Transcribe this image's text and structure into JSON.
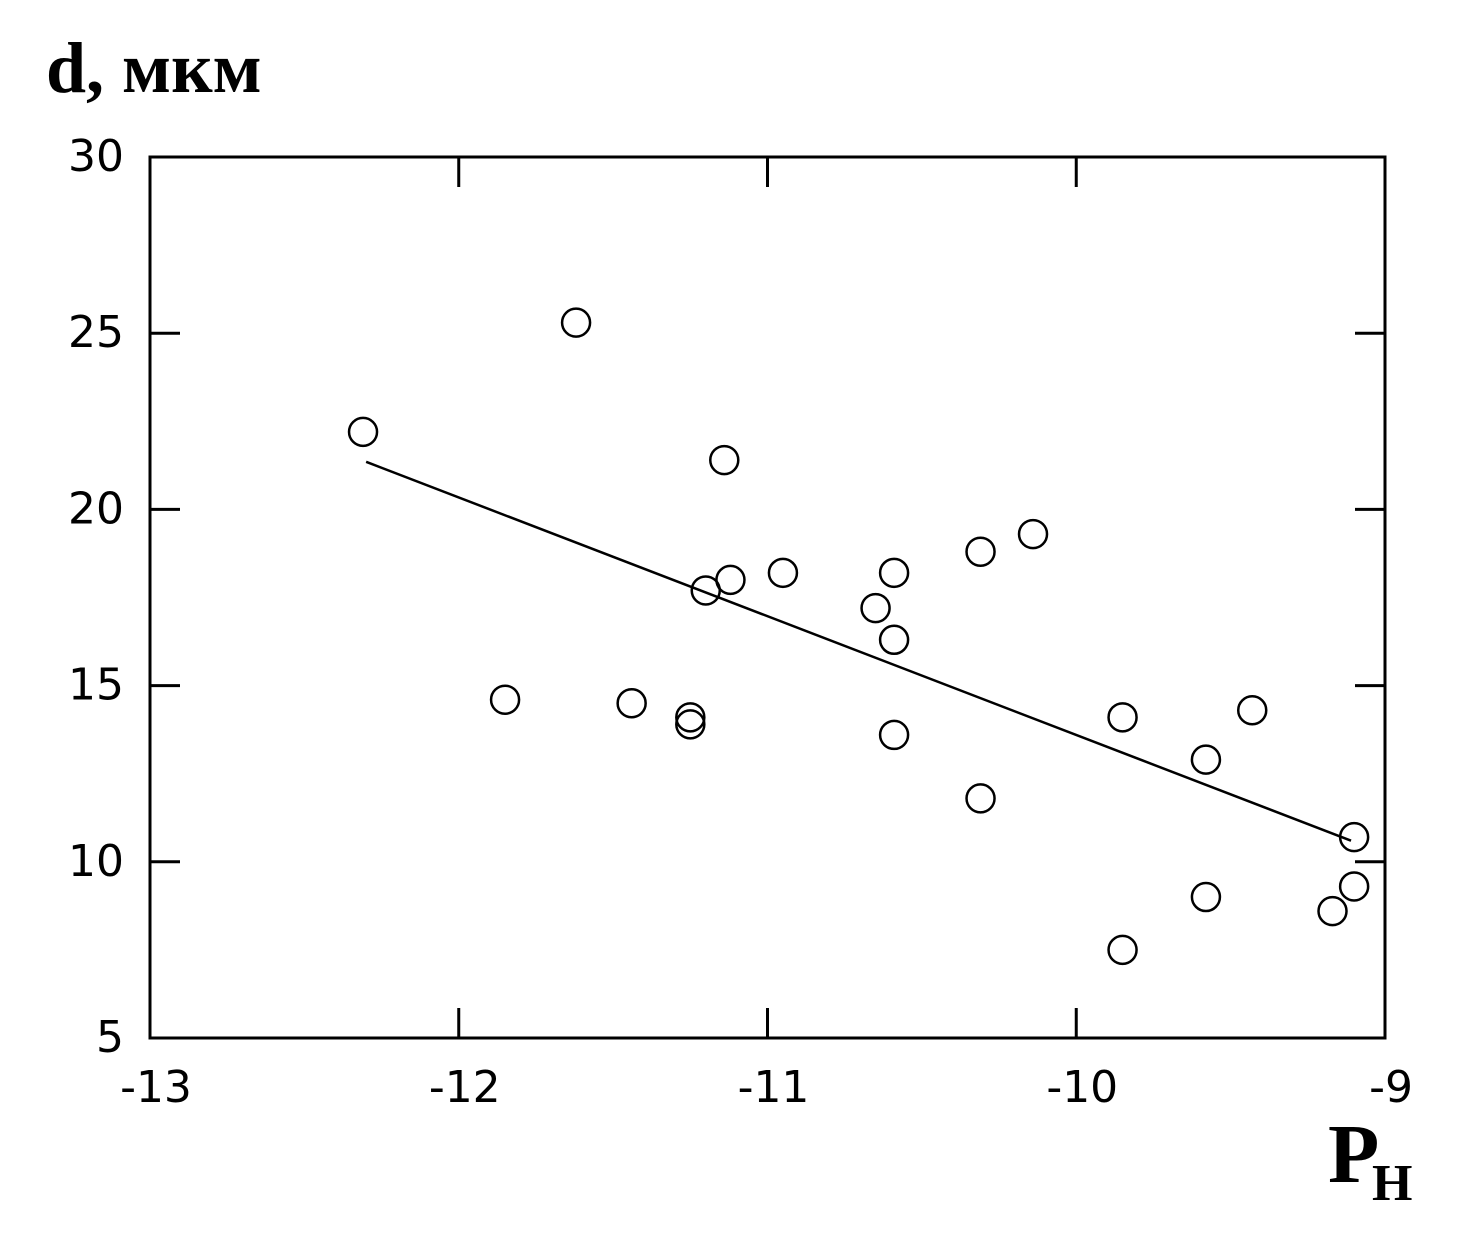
{
  "chart_data": {
    "type": "scatter",
    "title": "d, мкм",
    "xlabel": "P",
    "xlabel_subscript": "Н",
    "x": [
      -12.31,
      -11.62,
      -11.85,
      -11.44,
      -11.25,
      -11.25,
      -11.14,
      -11.2,
      -11.12,
      -10.95,
      -10.65,
      -10.59,
      -10.59,
      -10.59,
      -10.31,
      -10.14,
      -10.31,
      -9.85,
      -9.85,
      -9.58,
      -9.58,
      -9.43,
      -9.1,
      -9.1,
      -9.17
    ],
    "y": [
      22.2,
      25.3,
      14.6,
      14.5,
      14.1,
      13.9,
      21.4,
      17.7,
      18.0,
      18.2,
      17.2,
      18.2,
      16.3,
      13.6,
      18.8,
      19.3,
      11.8,
      14.1,
      7.5,
      12.9,
      9.0,
      14.3,
      10.7,
      9.3,
      8.6
    ],
    "color": "#000000",
    "fit_line": {
      "x": [
        -12.3,
        -9.11
      ],
      "y": [
        21.35,
        10.6
      ]
    },
    "xlim": [
      -13,
      -9
    ],
    "xticks": [
      -13,
      -12,
      -11,
      -10,
      -9
    ],
    "ylim": [
      5,
      30
    ],
    "yticks": [
      5,
      10,
      15,
      20,
      25,
      30
    ],
    "grid": false
  }
}
